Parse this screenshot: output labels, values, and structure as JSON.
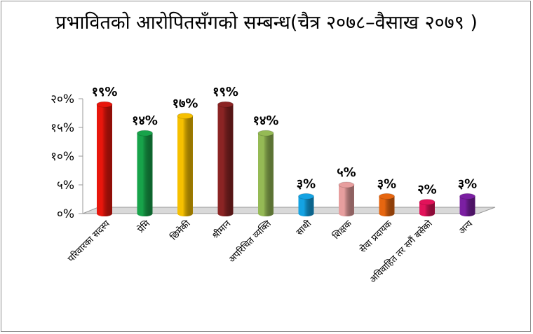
{
  "chart_data": {
    "type": "bar",
    "title": "प्रभावितको आरोपितसँगको सम्बन्ध(चैत्र २०७८–वैसाख २०७९ )",
    "categories": [
      "परिवारका सदस्य",
      "प्रेमि",
      "छिमेकी",
      "श्रीमान",
      "अपरिचित व्यक्ति",
      "साथी",
      "शिक्षक",
      "सेवा प्रदायक",
      "अविवाहित तर सगैं बसेको",
      "अन्य"
    ],
    "values": [
      19,
      14,
      17,
      19,
      14,
      3,
      5,
      3,
      2,
      3
    ],
    "data_labels": [
      "१९%",
      "१४%",
      "१७%",
      "१९%",
      "१४%",
      "३%",
      "५%",
      "३%",
      "२%",
      "३%"
    ],
    "y_tick_labels": [
      "०%",
      "५%",
      "१०%",
      "१५%",
      "२०%"
    ],
    "ylim": [
      0,
      20
    ],
    "grid": false,
    "legend": "none",
    "colors": [
      "#e8160c",
      "#17a34a",
      "#f6c000",
      "#8b2424",
      "#95ba55",
      "#14a3e3",
      "#e79e9e",
      "#e66610",
      "#e2125a",
      "#7b1fa2"
    ],
    "floor_color": "#d9d9d9"
  }
}
